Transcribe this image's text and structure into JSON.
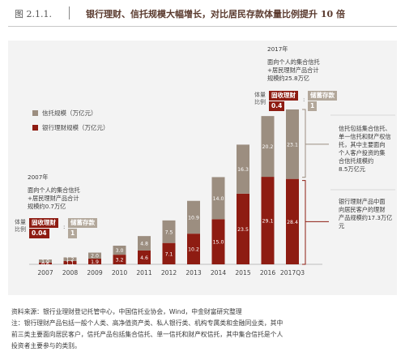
{
  "header": {
    "figure_label": "图 2.1.1.",
    "title": "银行理财、信托规模大幅增长，对比居民存款体量比例提升 10 倍"
  },
  "legend": {
    "trust": "信托规模（万亿元）",
    "wealth": "银行理财规模（万亿元）"
  },
  "note_2007": {
    "year": "2007年",
    "line1": "面向个人的集合信托",
    "line2": "+居民理财产品合计",
    "line3": "规模约0.7万亿",
    "ratio_label": "体量\n比例",
    "numerator": "固收理财",
    "numerator_value": "0.04",
    "separator": ":",
    "denominator": "储蓄存款",
    "denominator_value": "1"
  },
  "note_2017": {
    "year": "2017年",
    "line1": "面向个人的集合信托",
    "line2": "+居民理财产品合计",
    "line3": "规模约25.8万亿",
    "ratio_label": "体量\n比例",
    "numerator": "固收理财",
    "numerator_value": "0.4",
    "separator": ":",
    "denominator": "储蓄存款",
    "denominator_value": "1"
  },
  "note_trust": {
    "lines": [
      "信托包括集合信托、",
      "单一信托和财产权信",
      "托，其中主要面向",
      "个人客户投资的集",
      "合信托规模约",
      "8.5万亿元"
    ]
  },
  "note_wealth": {
    "lines": [
      "银行理财产品中面",
      "向居民客户的理财",
      "产品规模约17.3万亿元"
    ]
  },
  "colors": {
    "trust": "#9c8e80",
    "wealth": "#8e1c12",
    "background": "#f3f3f3"
  },
  "chart_data": {
    "type": "bar",
    "stacked": true,
    "categories": [
      "2007",
      "2008",
      "2009",
      "2010",
      "2011",
      "2012",
      "2013",
      "2014",
      "2015",
      "2016",
      "2017Q3"
    ],
    "series": [
      {
        "name": "银行理财规模（万亿元）",
        "values": [
          0.6,
          1.1,
          1.9,
          3.2,
          4.6,
          7.1,
          10.2,
          15.0,
          23.5,
          29.1,
          28.4
        ]
      },
      {
        "name": "信托规模（万亿元）",
        "values": [
          1.0,
          1.2,
          2.0,
          3.0,
          4.8,
          7.5,
          10.9,
          14.0,
          16.3,
          20.2,
          23.1
        ]
      }
    ],
    "value_labels": {
      "wealth": [
        "0.6",
        "1.1",
        "1.9",
        "3.2",
        "4.6",
        "7.1",
        "10.2",
        "15.0",
        "23.5",
        "29.1",
        "28.4"
      ],
      "trust": [
        "1.0",
        "1.2",
        "2.0",
        "3.0",
        "4.8",
        "7.5",
        "10.9",
        "14.0",
        "16.3",
        "20.2",
        "23.1"
      ]
    },
    "ylim": [
      0,
      55
    ],
    "grid": false
  },
  "source": {
    "line1": "资料来源：银行业理财登记托管中心，中国信托业协会，Wind，中金财富研究整理",
    "line2": "注：银行理财产品包括一般个人类、高净值资产类、私人银行类、机构专属类和金融同业类，其中",
    "line3": "前三类主要面向居民客户，信托产品包括集合信托、单一信托和财产权信托，其中集合信托是个人",
    "line4": "投资者主要参与的类别。"
  }
}
